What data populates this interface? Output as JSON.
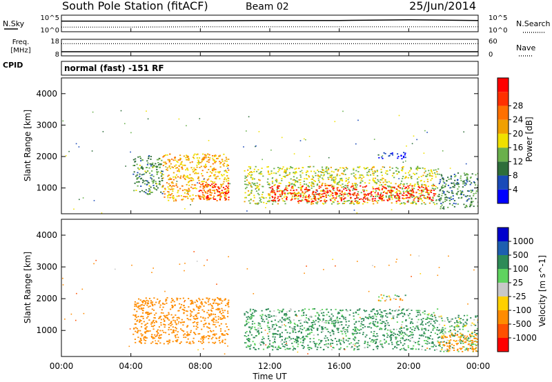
{
  "header": {
    "station": "South Pole Station (fitACF)",
    "beam": "Beam 02",
    "date": "25/Jun/2014"
  },
  "mode_text": "normal (fast) -151 RF",
  "labels": {
    "nsky": "N.Sky",
    "nsearch": "N.Search",
    "freq": "Freq.",
    "mhz": "[MHz]",
    "nave": "Nave",
    "cpid": "CPID"
  },
  "colors": {
    "power": [
      "#0000ff",
      "#1a4ab8",
      "#2e6e3a",
      "#6ab04c",
      "#f0e000",
      "#f0a000",
      "#ff7000",
      "#ff3000",
      "#ff0000"
    ],
    "velocity": [
      "#ff0000",
      "#ff5000",
      "#ff8c00",
      "#ffd000",
      "#c8c8c8",
      "#5fd35f",
      "#2e8b57",
      "#1e5fb0",
      "#0000cc"
    ]
  },
  "chart_data": [
    {
      "type": "line",
      "panel": "sky-noise-and-search-noise",
      "x": [
        0,
        4,
        8,
        12,
        16,
        20,
        24
      ],
      "yticks": [
        "10^0",
        "10^5"
      ],
      "right_yticks": [
        "10^0",
        "10^5"
      ],
      "series": [
        {
          "name": "N.Sky",
          "values": [
            3.2,
            3.2,
            3.3,
            3.4,
            3.4,
            3.6,
            3.4
          ]
        },
        {
          "name": "N.Search",
          "values": [
            1.4,
            1.4,
            1.5,
            1.5,
            1.5,
            1.5,
            1.5
          ]
        }
      ]
    },
    {
      "type": "line",
      "panel": "frequency-and-nave",
      "x": [
        0,
        4,
        8,
        12,
        16,
        20,
        24
      ],
      "yticks": [
        "8",
        "18"
      ],
      "ylim": [
        8,
        18
      ],
      "right_yticks": [
        "0",
        "60"
      ],
      "right_ylim": [
        0,
        60
      ],
      "series": [
        {
          "name": "Freq.",
          "values": [
            10.5,
            10.5,
            10.5,
            10.5,
            10.5,
            10.5,
            10.5
          ]
        },
        {
          "name": "Nave",
          "values": [
            44,
            44,
            44,
            44,
            44,
            44,
            44
          ]
        }
      ]
    },
    {
      "type": "heatmap",
      "panel": "power",
      "xlabel": "",
      "ylabel": "Slant Range [km]",
      "xlim": [
        0,
        24
      ],
      "ylim": [
        180,
        4500
      ],
      "yticks": [
        "1000",
        "2000",
        "3000",
        "4000"
      ],
      "colorbar_label": "Power [dB]",
      "colorbar_ticks": [
        "4",
        "8",
        "12",
        "16",
        "20",
        "24",
        "28"
      ],
      "colorbar_range": [
        0,
        30
      ],
      "features": [
        {
          "t": [
            4.1,
            5.8
          ],
          "range": [
            800,
            2050
          ],
          "level": 10
        },
        {
          "t": [
            5.8,
            9.6
          ],
          "range": [
            600,
            2100
          ],
          "level": 18
        },
        {
          "t": [
            7.8,
            9.6
          ],
          "range": [
            650,
            1200
          ],
          "level": 26
        },
        {
          "t": [
            10.5,
            21.7
          ],
          "range": [
            500,
            1700
          ],
          "level": 14
        },
        {
          "t": [
            12.0,
            21.5
          ],
          "range": [
            580,
            1100
          ],
          "level": 27
        },
        {
          "t": [
            21.7,
            24.0
          ],
          "range": [
            350,
            1500
          ],
          "level": 9
        },
        {
          "t": [
            18.2,
            19.8
          ],
          "range": [
            1950,
            2150
          ],
          "level": 3
        }
      ]
    },
    {
      "type": "heatmap",
      "panel": "velocity",
      "xlabel": "Time UT",
      "ylabel": "Slant Range [km]",
      "xlim": [
        0,
        24
      ],
      "ylim": [
        180,
        4500
      ],
      "xticks": [
        "00:00",
        "04:00",
        "08:00",
        "12:00",
        "16:00",
        "20:00",
        "00:00"
      ],
      "yticks": [
        "1000",
        "2000",
        "3000",
        "4000"
      ],
      "colorbar_label": "Velocity [m s^-1]",
      "colorbar_ticks": [
        "1000",
        "500",
        "100",
        "25",
        "-25",
        "-100",
        "-500",
        "-1000"
      ],
      "features": [
        {
          "t": [
            4.1,
            9.6
          ],
          "range": [
            600,
            2050
          ],
          "level": -300
        },
        {
          "t": [
            10.5,
            21.7
          ],
          "range": [
            400,
            1700
          ],
          "level": 200
        },
        {
          "t": [
            21.7,
            24.0
          ],
          "range": [
            350,
            1500
          ],
          "level": 100
        },
        {
          "t": [
            21.7,
            24.0
          ],
          "range": [
            350,
            900
          ],
          "level": -300
        },
        {
          "t": [
            18.2,
            19.8
          ],
          "range": [
            1950,
            2150
          ],
          "level": 20
        }
      ]
    }
  ]
}
